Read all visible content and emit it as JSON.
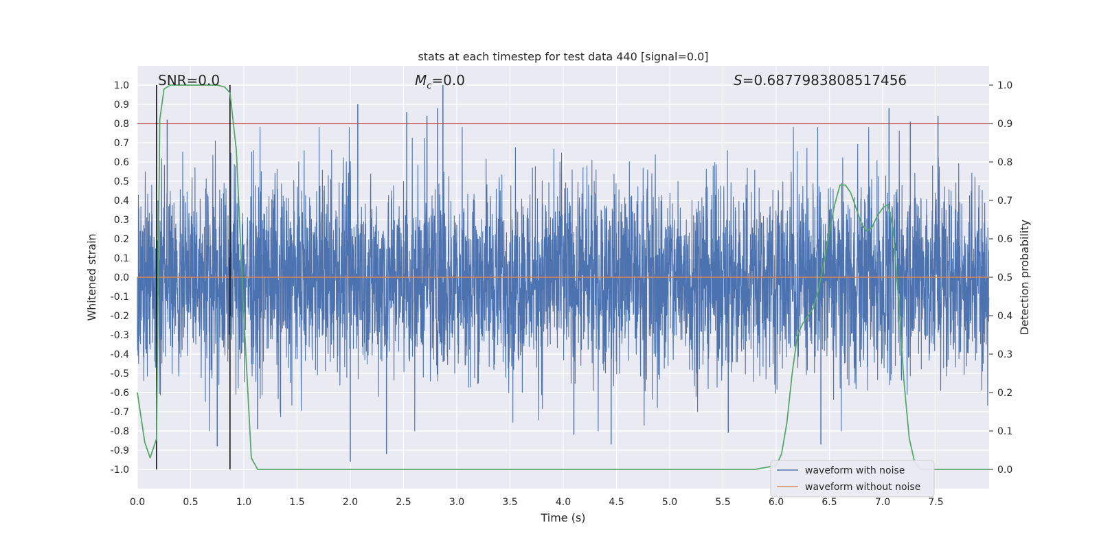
{
  "chart_data": {
    "type": "line",
    "title": "stats at each timestep for test data 440 [signal=0.0]",
    "xlabel": "Time (s)",
    "ylabel_left": "Whitened strain",
    "ylabel_right": "Detection probability",
    "xlim": [
      0.0,
      8.0
    ],
    "ylim_left": [
      -1.1,
      1.1
    ],
    "ylim_right": [
      -0.05,
      1.05
    ],
    "x_ticks": [
      "0.0",
      "0.5",
      "1.0",
      "1.5",
      "2.0",
      "2.5",
      "3.0",
      "3.5",
      "4.0",
      "4.5",
      "5.0",
      "5.5",
      "6.0",
      "6.5",
      "7.0",
      "7.5"
    ],
    "y_left_ticks": [
      "1.0",
      "0.9",
      "0.8",
      "0.7",
      "0.6",
      "0.5",
      "0.4",
      "0.3",
      "0.2",
      "0.1",
      "0.0",
      "-0.1",
      "-0.2",
      "-0.3",
      "-0.4",
      "-0.5",
      "-0.6",
      "-0.7",
      "-0.8",
      "-0.9",
      "-1.0"
    ],
    "y_right_ticks": [
      "1.0",
      "0.9",
      "0.8",
      "0.7",
      "0.6",
      "0.5",
      "0.4",
      "0.3",
      "0.2",
      "0.1",
      "0.0"
    ],
    "grid": true,
    "annotations": {
      "snr": "SNR=0.0",
      "mc_symbol": "M",
      "mc_sub": "c",
      "mc_value": "=0.0",
      "s_symbol": "S",
      "s_value": "=0.6877983808517456"
    },
    "vertical_lines_x": [
      0.18,
      0.87
    ],
    "threshold_right_y": 0.9,
    "series": [
      {
        "name": "waveform with noise",
        "axis": "left",
        "color": "#4c72b0",
        "description_stats": {
          "typical_amplitude": 0.4,
          "peak_max": 1.0,
          "peak_min": -0.96
        }
      },
      {
        "name": "waveform without noise",
        "axis": "left",
        "color": "#dd8452",
        "constant_value": 0.0
      },
      {
        "axis": "right",
        "color": "#55a868",
        "x": [
          0.0,
          0.07,
          0.12,
          0.18,
          0.21,
          0.25,
          0.31,
          0.5,
          0.75,
          0.82,
          0.87,
          0.93,
          1.0,
          1.07,
          1.13,
          2.0,
          3.0,
          4.0,
          5.0,
          5.8,
          5.9,
          6.0,
          6.05,
          6.1,
          6.15,
          6.2,
          6.25,
          6.3,
          6.35,
          6.4,
          6.45,
          6.5,
          6.55,
          6.6,
          6.65,
          6.7,
          6.75,
          6.8,
          6.85,
          6.9,
          6.95,
          7.0,
          7.05,
          7.1,
          7.15,
          7.2,
          7.25,
          7.3,
          7.35,
          7.5,
          8.0
        ],
        "values": [
          0.2,
          0.07,
          0.03,
          0.08,
          0.91,
          0.99,
          1.0,
          1.0,
          1.0,
          0.995,
          0.98,
          0.83,
          0.4,
          0.03,
          0.0,
          0.0,
          0.0,
          0.0,
          0.0,
          0.0,
          0.005,
          0.01,
          0.04,
          0.12,
          0.25,
          0.35,
          0.38,
          0.4,
          0.42,
          0.47,
          0.54,
          0.62,
          0.69,
          0.74,
          0.74,
          0.72,
          0.68,
          0.64,
          0.62,
          0.63,
          0.66,
          0.68,
          0.69,
          0.62,
          0.44,
          0.23,
          0.08,
          0.02,
          0.0,
          0.0,
          0.0
        ]
      }
    ],
    "legend": {
      "placement": "lower-right",
      "entries": [
        "waveform with noise",
        "waveform without noise"
      ]
    }
  }
}
